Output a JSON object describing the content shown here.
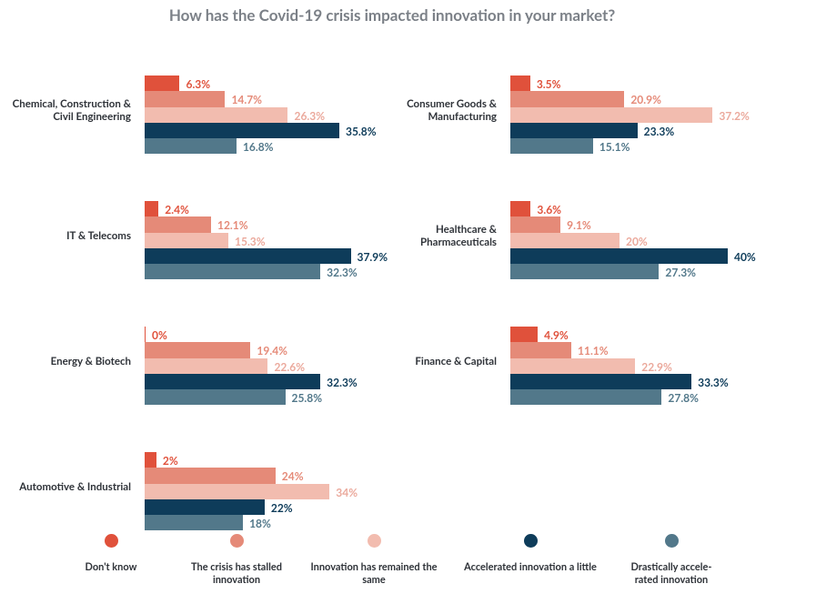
{
  "chart_data": {
    "type": "bar",
    "orientation": "horizontal",
    "title": "How has the Covid-19 crisis impacted innovation in your market?",
    "categories": [
      "Chemical, Construction & Civil Engineering",
      "Consumer Goods & Manufacturing",
      "IT & Telecoms",
      "Healthcare & Pharmaceuticals",
      "Energy & Biotech",
      "Finance & Capital",
      "Automotive & Industrial"
    ],
    "series": [
      {
        "name": "Don't know",
        "color": "#e0513b",
        "values": [
          6.3,
          3.5,
          2.4,
          3.6,
          0,
          4.9,
          2
        ],
        "value_labels": [
          "6.3%",
          "3.5%",
          "2.4%",
          "3.6%",
          "0%",
          "4.9%",
          "2%"
        ]
      },
      {
        "name": "The crisis has stalled innovation",
        "color": "#e58a78",
        "values": [
          14.7,
          20.9,
          12.1,
          9.1,
          19.4,
          11.1,
          24
        ],
        "value_labels": [
          "14.7%",
          "20.9%",
          "12.1%",
          "9.1%",
          "19.4%",
          "11.1%",
          "24%"
        ]
      },
      {
        "name": "Innovation has remained the same",
        "color": "#f2bcaf",
        "values": [
          26.3,
          37.2,
          15.3,
          20,
          22.6,
          22.9,
          34
        ],
        "value_labels": [
          "26.3%",
          "37.2%",
          "15.3%",
          "20%",
          "22.6%",
          "22.9%",
          "34%"
        ]
      },
      {
        "name": "Accelerated innovation a little",
        "color": "#0e3c5a",
        "values": [
          35.8,
          23.3,
          37.9,
          40,
          32.3,
          33.3,
          22
        ],
        "value_labels": [
          "35.8%",
          "23.3%",
          "37.9%",
          "40%",
          "32.3%",
          "33.3%",
          "22%"
        ]
      },
      {
        "name": "Drastically accele-rated innovation",
        "color": "#52788a",
        "values": [
          16.8,
          15.1,
          32.3,
          27.3,
          25.8,
          27.8,
          18
        ],
        "value_labels": [
          "16.8%",
          "15.1%",
          "32.3%",
          "27.3%",
          "25.8%",
          "27.8%",
          "18%"
        ]
      }
    ]
  }
}
